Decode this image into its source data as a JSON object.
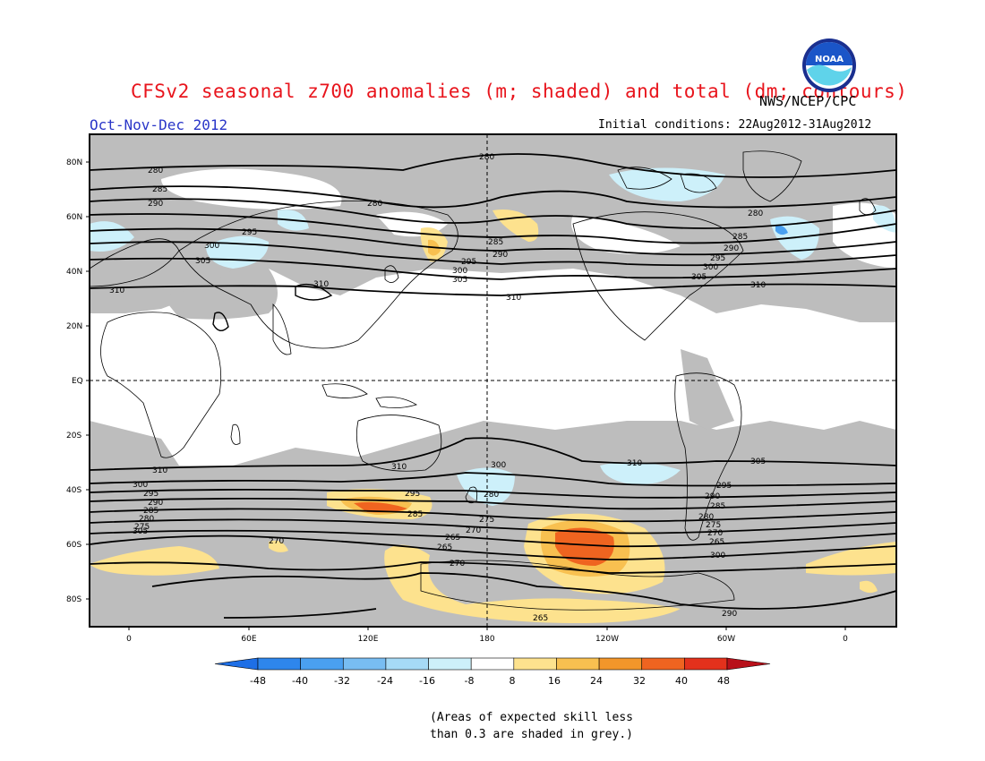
{
  "header": {
    "title": "CFSv2 seasonal z700 anomalies (m; shaded) and total (dm; contours)",
    "agency": "NWS/NCEP/CPC",
    "season": "Oct-Nov-Dec 2012",
    "initial_conditions": "Initial conditions: 22Aug2012-31Aug2012",
    "logo_text": "NOAA"
  },
  "map": {
    "lat_labels": [
      "80N",
      "60N",
      "40N",
      "20N",
      "EQ",
      "20S",
      "40S",
      "60S",
      "80S"
    ],
    "lon_labels": [
      "0",
      "60E",
      "120E",
      "180",
      "120W",
      "60W",
      "0"
    ],
    "contour_labels": [
      "280",
      "280",
      "280",
      "280",
      "285",
      "290",
      "295",
      "300",
      "305",
      "310",
      "310",
      "285",
      "290",
      "295",
      "300",
      "305",
      "310",
      "285",
      "290",
      "295",
      "300",
      "305",
      "310",
      "310",
      "310",
      "310",
      "305",
      "300",
      "295",
      "290",
      "285",
      "280",
      "275",
      "305",
      "300",
      "295",
      "290",
      "285",
      "280",
      "275",
      "270",
      "265",
      "300",
      "290",
      "295",
      "285",
      "280",
      "275",
      "270",
      "265",
      "265",
      "270",
      "270",
      "265"
    ],
    "land_outline_color": "#000000",
    "skill_mask_color": "#bdbdbd"
  },
  "colorbar": {
    "ticks": [
      "-48",
      "-40",
      "-32",
      "-24",
      "-16",
      "-8",
      "8",
      "16",
      "24",
      "32",
      "40",
      "48"
    ],
    "colors": [
      "#1e6fe6",
      "#2e86ec",
      "#4aa0f0",
      "#78bdf2",
      "#a6daf6",
      "#cdf0fa",
      "#ffffff",
      "#fde28e",
      "#f8c050",
      "#f3962a",
      "#ef6420",
      "#e3311c",
      "#b8101a"
    ]
  },
  "footnote": {
    "line1": "(Areas of expected skill less",
    "line2": "than 0.3 are shaded in grey.)"
  }
}
